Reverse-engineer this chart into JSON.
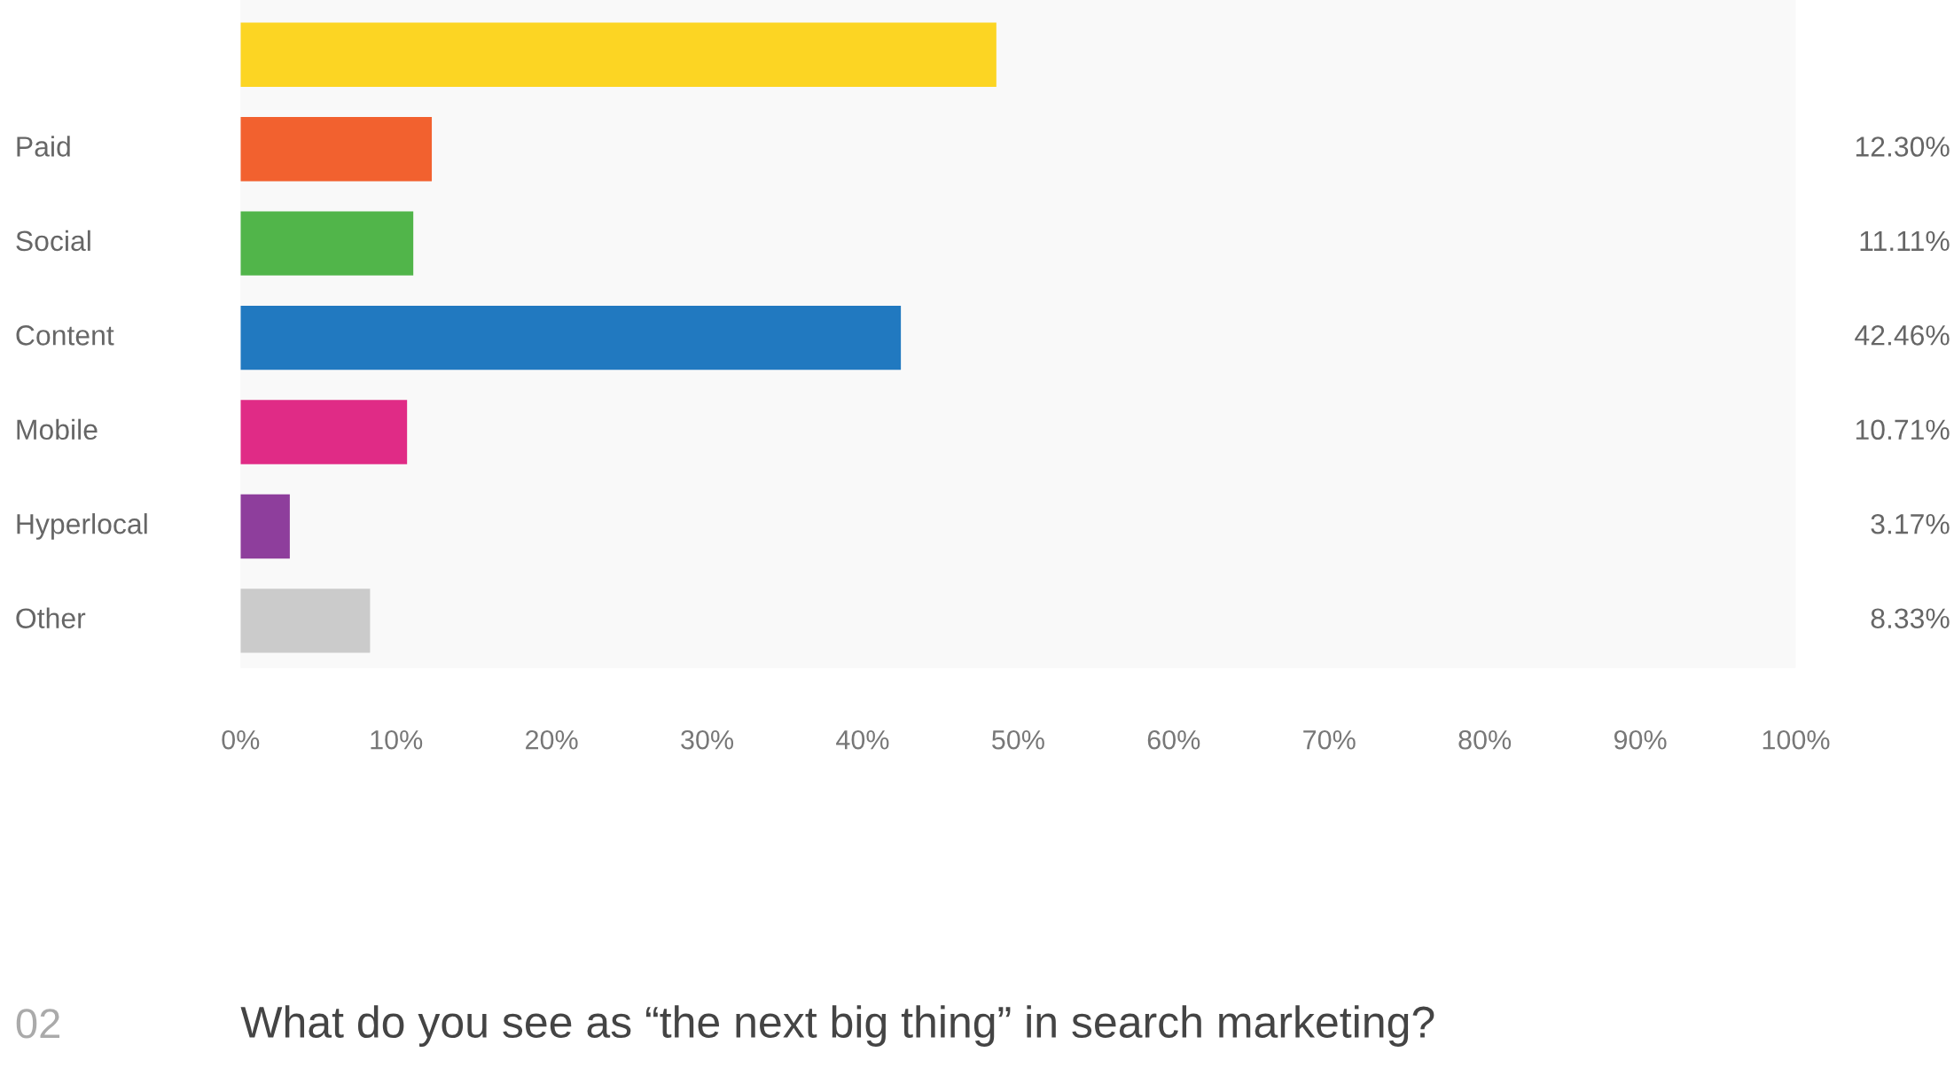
{
  "chart_data": {
    "type": "bar",
    "orientation": "horizontal",
    "categories": [
      null,
      "Paid",
      "Social",
      "Content",
      "Mobile",
      "Hyperlocal",
      "Other"
    ],
    "values": [
      48.6,
      12.3,
      11.11,
      42.46,
      10.71,
      3.17,
      8.33
    ],
    "value_labels": [
      null,
      "12.30%",
      "11.11%",
      "42.46%",
      "10.71%",
      "3.17%",
      "8.33%"
    ],
    "colors": [
      "#fcd523",
      "#f2612f",
      "#51b54a",
      "#2179c0",
      "#e02b86",
      "#8e3e9c",
      "#cbcbcb"
    ],
    "xlim": [
      0,
      100
    ],
    "xticks": [
      {
        "value": 0,
        "label": "0%"
      },
      {
        "value": 10,
        "label": "10%"
      },
      {
        "value": 20,
        "label": "20%"
      },
      {
        "value": 30,
        "label": "30%"
      },
      {
        "value": 40,
        "label": "40%"
      },
      {
        "value": 50,
        "label": "50%"
      },
      {
        "value": 60,
        "label": "60%"
      },
      {
        "value": 70,
        "label": "70%"
      },
      {
        "value": 80,
        "label": "80%"
      },
      {
        "value": 90,
        "label": "90%"
      },
      {
        "value": 100,
        "label": "100%"
      }
    ],
    "grid": false,
    "legend": false,
    "annotations": [
      "02",
      "What do you see as “the next big thing” in search marketing?"
    ]
  }
}
